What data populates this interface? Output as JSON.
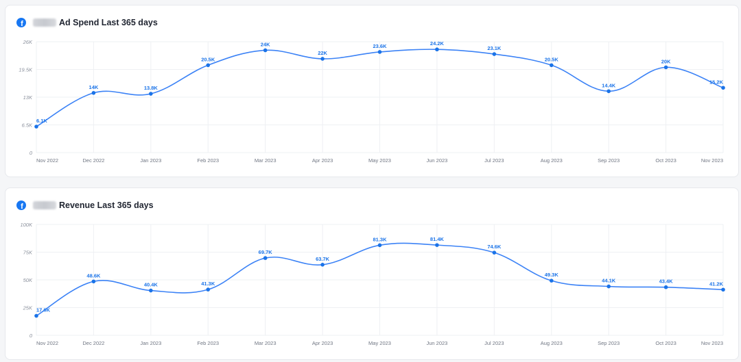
{
  "colors": {
    "line": "#3b82f6",
    "point": "#1a73e8",
    "grid": "#eef0f3",
    "facebook": "#1877f2"
  },
  "icons": {
    "platform": "facebook-icon"
  },
  "cards": [
    {
      "title": "Ad Spend Last 365 days"
    },
    {
      "title": "Revenue Last 365 days"
    }
  ],
  "chart_data": [
    {
      "type": "line",
      "title": "Ad Spend Last 365 days",
      "categories": [
        "Nov 2022",
        "Dec 2022",
        "Jan 2023",
        "Feb 2023",
        "Mar 2023",
        "Apr 2023",
        "May 2023",
        "Jun 2023",
        "Jul 2023",
        "Aug 2023",
        "Sep 2023",
        "Oct 2023",
        "Nov 2023"
      ],
      "values": [
        6100,
        14000,
        13800,
        20500,
        24000,
        22000,
        23600,
        24200,
        23100,
        20500,
        14400,
        20000,
        15200
      ],
      "data_labels": [
        "6.1K",
        "14K",
        "13.8K",
        "20.5K",
        "24K",
        "22K",
        "23.6K",
        "24.2K",
        "23.1K",
        "20.5K",
        "14.4K",
        "20K",
        "15.2K"
      ],
      "yticks": [
        0,
        6500,
        13000,
        19500,
        26000
      ],
      "ytick_labels": [
        "0",
        "6.5K",
        "13K",
        "19.5K",
        "26K"
      ],
      "ylim": [
        0,
        26000
      ],
      "grid": true
    },
    {
      "type": "line",
      "title": "Revenue Last 365 days",
      "categories": [
        "Nov 2022",
        "Dec 2022",
        "Jan 2023",
        "Feb 2023",
        "Mar 2023",
        "Apr 2023",
        "May 2023",
        "Jun 2023",
        "Jul 2023",
        "Aug 2023",
        "Sep 2023",
        "Oct 2023",
        "Nov 2023"
      ],
      "values": [
        17600,
        48600,
        40400,
        41300,
        69700,
        63700,
        81300,
        81400,
        74600,
        49300,
        44100,
        43400,
        41200
      ],
      "data_labels": [
        "17.6K",
        "48.6K",
        "40.4K",
        "41.3K",
        "69.7K",
        "63.7K",
        "81.3K",
        "81.4K",
        "74.6K",
        "49.3K",
        "44.1K",
        "43.4K",
        "41.2K"
      ],
      "yticks": [
        0,
        25000,
        50000,
        75000,
        100000
      ],
      "ytick_labels": [
        "0",
        "25K",
        "50K",
        "75K",
        "100K"
      ],
      "ylim": [
        0,
        100000
      ],
      "grid": true
    }
  ]
}
